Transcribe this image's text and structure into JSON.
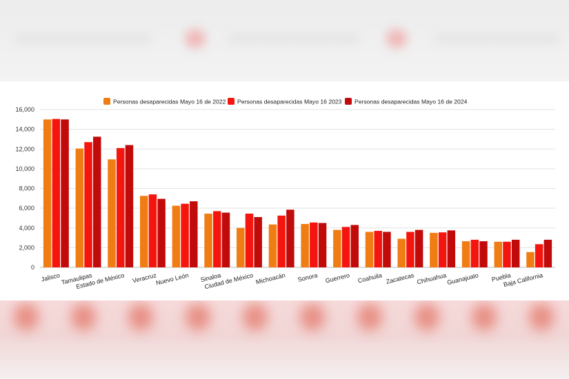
{
  "chart_data": {
    "type": "bar",
    "categories": [
      "Jalisco",
      "Tamaulipas",
      "Estado de México",
      "Veracruz",
      "Nuevo León",
      "Sinaloa",
      "Ciudad de México",
      "Michoacán",
      "Sonora",
      "Guerrero",
      "Coahuila",
      "Zacatecas",
      "Chihuahua",
      "Guanajuato",
      "Puebla",
      "Baja California"
    ],
    "series": [
      {
        "name": "Personas desaparecidas Mayo 16 de 2022",
        "color": "#f07d13",
        "values": [
          15000,
          12050,
          10950,
          7250,
          6250,
          5450,
          4000,
          4350,
          4400,
          3800,
          3600,
          2900,
          3500,
          2650,
          2600,
          1550
        ]
      },
      {
        "name": "Personas desaparecidas Mayo 16  2023",
        "color": "#f5150f",
        "values": [
          15050,
          12700,
          12100,
          7400,
          6450,
          5700,
          5450,
          5250,
          4550,
          4100,
          3700,
          3600,
          3550,
          2800,
          2600,
          2350
        ]
      },
      {
        "name": "Personas desaparecidas Mayo 16 de 2024",
        "color": "#c10a0a",
        "values": [
          15000,
          13250,
          12400,
          6950,
          6700,
          5550,
          5100,
          5850,
          4500,
          4300,
          3600,
          3800,
          3750,
          2650,
          2800,
          2800
        ]
      }
    ],
    "ylim": [
      0,
      16000
    ],
    "yticks": [
      "0",
      "2,000",
      "4,000",
      "6,000",
      "8,000",
      "10,000",
      "12,000",
      "14,000",
      "16,000"
    ],
    "grid": true,
    "legend_position": "top-center"
  }
}
